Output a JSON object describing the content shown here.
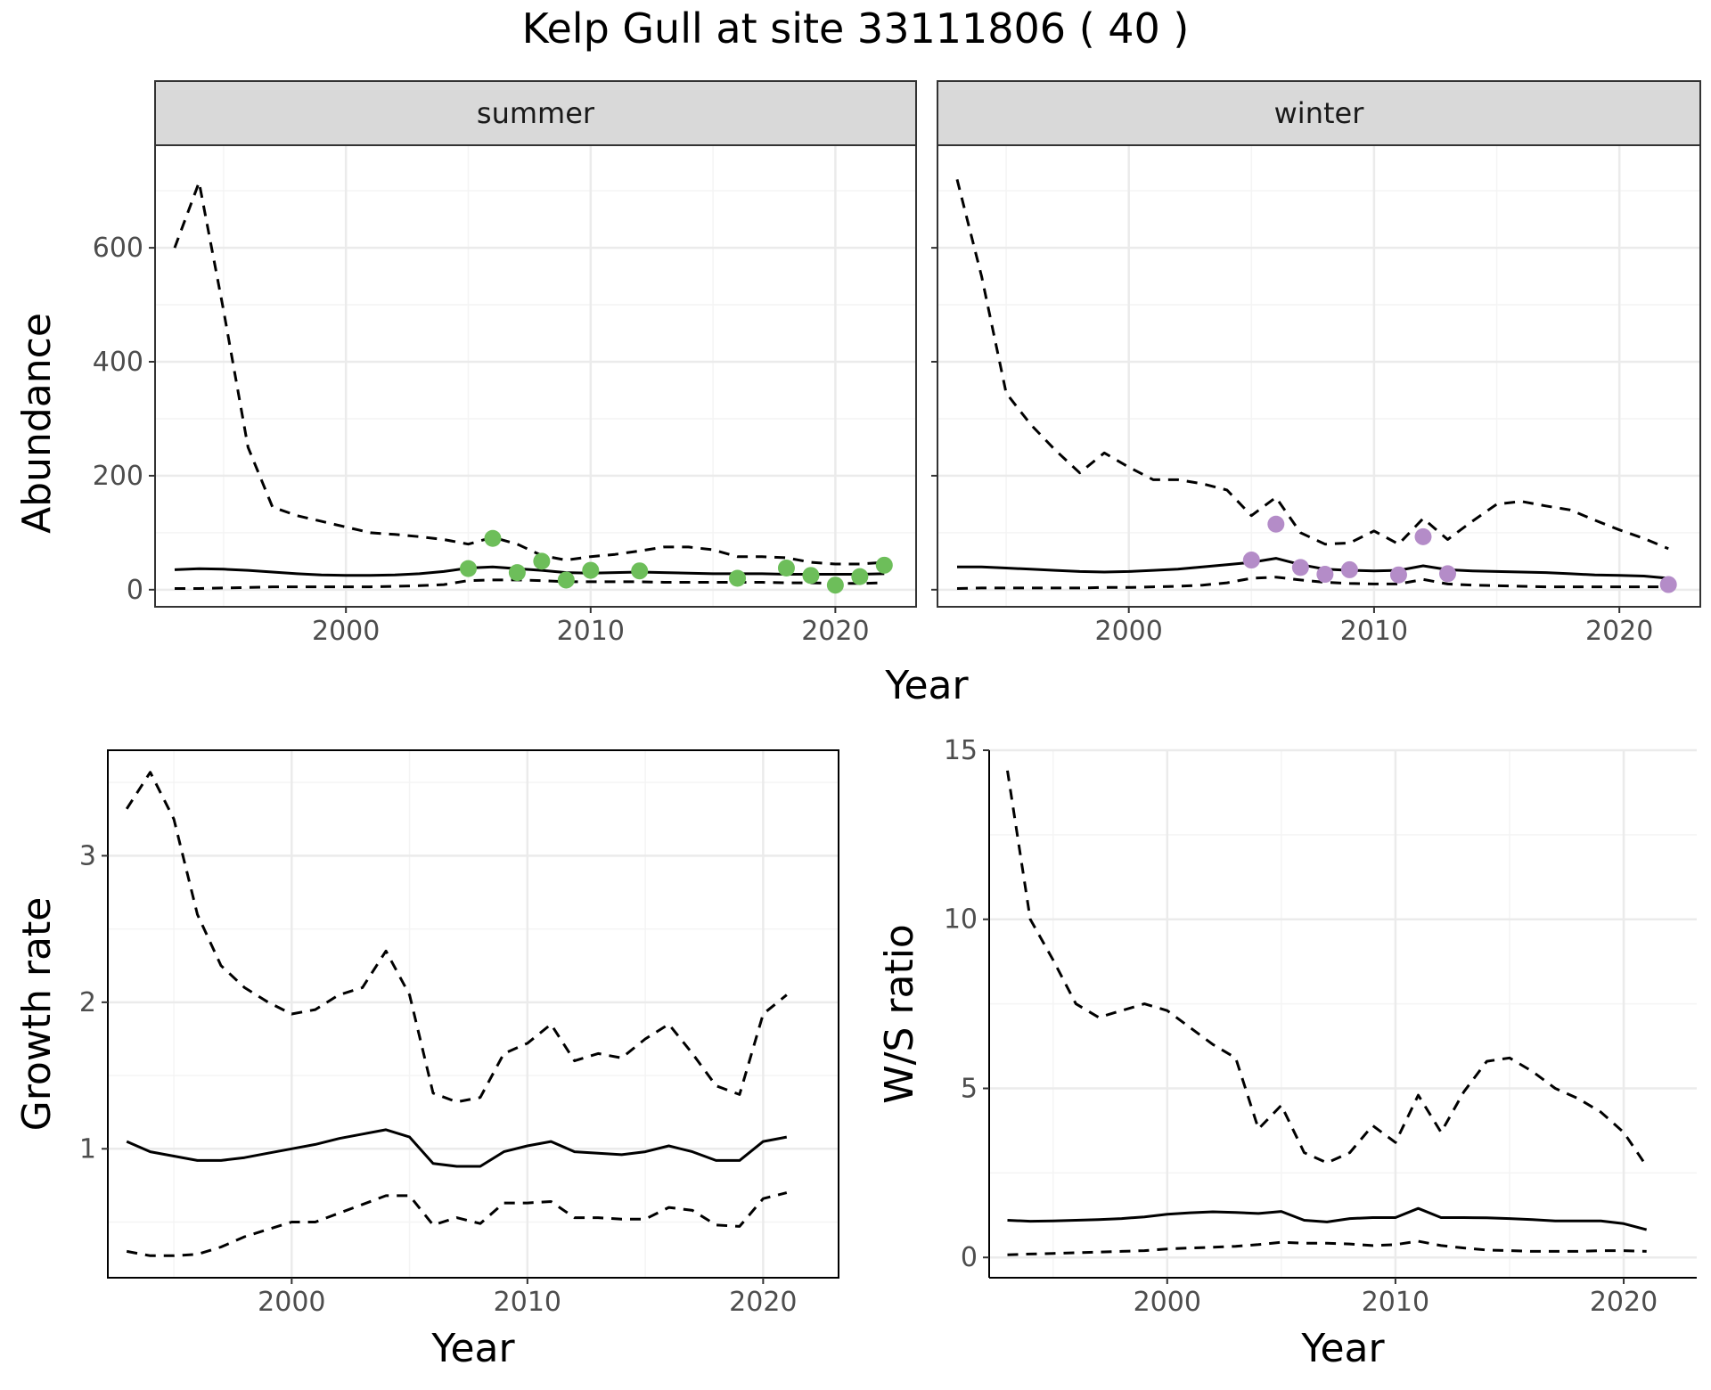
{
  "title": "Kelp Gull at site 33111806 ( 40 )",
  "colors": {
    "summer_points": "#6dbe5a",
    "winter_points": "#b48cc8",
    "line": "#000000",
    "grid_major": "#ebebeb",
    "grid_minor": "#f4f4f4",
    "strip_fill": "#d9d9d9",
    "panel_border": "#333333"
  },
  "top": {
    "xlabel": "Year",
    "ylabel": "Abundance",
    "panels": [
      {
        "strip": "summer"
      },
      {
        "strip": "winter"
      }
    ]
  },
  "chart_data": [
    {
      "type": "line",
      "panel": "summer",
      "xlabel": "Year",
      "ylabel": "Abundance",
      "xlim": [
        1992.2,
        2023.3
      ],
      "ylim": [
        -30,
        780
      ],
      "xticks": [
        2000,
        2010,
        2020
      ],
      "yticks": [
        0,
        200,
        400,
        600
      ],
      "grid": true,
      "series": [
        {
          "style": "solid",
          "x": [
            1993,
            1994,
            1995,
            1996,
            1997,
            1998,
            1999,
            2000,
            2001,
            2002,
            2003,
            2004,
            2005,
            2006,
            2007,
            2008,
            2009,
            2010,
            2011,
            2012,
            2013,
            2014,
            2015,
            2016,
            2017,
            2018,
            2019,
            2020,
            2021,
            2022
          ],
          "y": [
            35,
            37,
            36,
            34,
            31,
            28,
            26,
            25,
            25,
            26,
            28,
            32,
            38,
            40,
            37,
            34,
            30,
            29,
            30,
            31,
            30,
            29,
            28,
            28,
            28,
            27,
            27,
            27,
            27,
            28
          ]
        },
        {
          "style": "dashed",
          "x": [
            1993,
            1994,
            1995,
            1996,
            1997,
            1998,
            1999,
            2000,
            2001,
            2002,
            2003,
            2004,
            2005,
            2006,
            2007,
            2008,
            2009,
            2010,
            2011,
            2012,
            2013,
            2014,
            2015,
            2016,
            2017,
            2018,
            2019,
            2020,
            2021,
            2022
          ],
          "y": [
            600,
            715,
            490,
            250,
            145,
            130,
            120,
            110,
            100,
            97,
            93,
            88,
            80,
            92,
            80,
            60,
            52,
            58,
            62,
            68,
            75,
            75,
            70,
            58,
            58,
            56,
            48,
            45,
            45,
            48
          ]
        },
        {
          "style": "dashed",
          "x": [
            1993,
            1994,
            1995,
            1996,
            1997,
            1998,
            1999,
            2000,
            2001,
            2002,
            2003,
            2004,
            2005,
            2006,
            2007,
            2008,
            2009,
            2010,
            2011,
            2012,
            2013,
            2014,
            2015,
            2016,
            2017,
            2018,
            2019,
            2020,
            2021,
            2022
          ],
          "y": [
            2,
            2,
            3,
            4,
            5,
            5,
            5,
            5,
            5,
            6,
            7,
            9,
            16,
            17,
            17,
            16,
            14,
            14,
            14,
            14,
            13,
            13,
            13,
            13,
            13,
            12,
            12,
            11,
            11,
            12
          ]
        },
        {
          "style": "points",
          "x": [
            2005,
            2006,
            2007,
            2008,
            2009,
            2010,
            2012,
            2016,
            2018,
            2019,
            2020,
            2021,
            2022
          ],
          "y": [
            37,
            90,
            30,
            50,
            17,
            34,
            33,
            20,
            38,
            25,
            8,
            23,
            43
          ]
        }
      ]
    },
    {
      "type": "line",
      "panel": "winter",
      "xlabel": "Year",
      "ylabel": "Abundance",
      "xlim": [
        1992.2,
        2023.3
      ],
      "ylim": [
        -30,
        780
      ],
      "xticks": [
        2000,
        2010,
        2020
      ],
      "yticks": [
        0,
        200,
        400,
        600
      ],
      "grid": true,
      "series": [
        {
          "style": "solid",
          "x": [
            1993,
            1994,
            1995,
            1996,
            1997,
            1998,
            1999,
            2000,
            2001,
            2002,
            2003,
            2004,
            2005,
            2006,
            2007,
            2008,
            2009,
            2010,
            2011,
            2012,
            2013,
            2014,
            2015,
            2016,
            2017,
            2018,
            2019,
            2020,
            2021,
            2022
          ],
          "y": [
            40,
            40,
            38,
            36,
            34,
            32,
            31,
            32,
            34,
            36,
            40,
            44,
            48,
            55,
            44,
            36,
            34,
            33,
            34,
            42,
            35,
            33,
            32,
            31,
            30,
            28,
            26,
            25,
            24,
            20
          ]
        },
        {
          "style": "dashed",
          "x": [
            1993,
            1994,
            1995,
            1996,
            1997,
            1998,
            1999,
            2000,
            2001,
            2002,
            2003,
            2004,
            2005,
            2006,
            2007,
            2008,
            2009,
            2010,
            2011,
            2012,
            2013,
            2014,
            2015,
            2016,
            2017,
            2018,
            2019,
            2020,
            2021,
            2022
          ],
          "y": [
            720,
            550,
            345,
            290,
            245,
            205,
            240,
            215,
            193,
            193,
            186,
            175,
            130,
            162,
            100,
            80,
            82,
            103,
            80,
            125,
            88,
            120,
            150,
            155,
            147,
            140,
            122,
            105,
            90,
            72
          ]
        },
        {
          "style": "dashed",
          "x": [
            1993,
            1994,
            1995,
            1996,
            1997,
            1998,
            1999,
            2000,
            2001,
            2002,
            2003,
            2004,
            2005,
            2006,
            2007,
            2008,
            2009,
            2010,
            2011,
            2012,
            2013,
            2014,
            2015,
            2016,
            2017,
            2018,
            2019,
            2020,
            2021,
            2022
          ],
          "y": [
            2,
            3,
            3,
            3,
            3,
            3,
            4,
            4,
            5,
            6,
            8,
            12,
            20,
            22,
            17,
            13,
            11,
            10,
            10,
            18,
            10,
            8,
            7,
            6,
            5,
            5,
            5,
            5,
            5,
            5
          ]
        },
        {
          "style": "points",
          "x": [
            2005,
            2006,
            2007,
            2008,
            2009,
            2011,
            2012,
            2013,
            2022
          ],
          "y": [
            52,
            115,
            39,
            27,
            35,
            26,
            93,
            28,
            9
          ]
        }
      ]
    },
    {
      "type": "line",
      "panel": "growth",
      "xlabel": "Year",
      "ylabel": "Growth rate",
      "xlim": [
        1992.2,
        2023.2
      ],
      "ylim": [
        0.12,
        3.72
      ],
      "xticks": [
        2000,
        2010,
        2020
      ],
      "yticks": [
        1,
        2,
        3
      ],
      "grid": true,
      "series": [
        {
          "style": "solid",
          "x": [
            1993,
            1994,
            1995,
            1996,
            1997,
            1998,
            1999,
            2000,
            2001,
            2002,
            2003,
            2004,
            2005,
            2006,
            2007,
            2008,
            2009,
            2010,
            2011,
            2012,
            2013,
            2014,
            2015,
            2016,
            2017,
            2018,
            2019,
            2020,
            2021
          ],
          "y": [
            1.05,
            0.98,
            0.95,
            0.92,
            0.92,
            0.94,
            0.97,
            1.0,
            1.03,
            1.07,
            1.1,
            1.13,
            1.08,
            0.9,
            0.88,
            0.88,
            0.98,
            1.02,
            1.05,
            0.98,
            0.97,
            0.96,
            0.98,
            1.02,
            0.98,
            0.92,
            0.92,
            1.05,
            1.08
          ]
        },
        {
          "style": "dashed",
          "x": [
            1993,
            1994,
            1995,
            1996,
            1997,
            1998,
            1999,
            2000,
            2001,
            2002,
            2003,
            2004,
            2005,
            2006,
            2007,
            2008,
            2009,
            2010,
            2011,
            2012,
            2013,
            2014,
            2015,
            2016,
            2017,
            2018,
            2019,
            2020,
            2021
          ],
          "y": [
            3.32,
            3.57,
            3.25,
            2.6,
            2.25,
            2.1,
            2.0,
            1.92,
            1.95,
            2.05,
            2.1,
            2.35,
            2.05,
            1.38,
            1.32,
            1.35,
            1.65,
            1.72,
            1.85,
            1.6,
            1.65,
            1.62,
            1.75,
            1.85,
            1.65,
            1.43,
            1.37,
            1.92,
            2.05
          ]
        },
        {
          "style": "dashed",
          "x": [
            1993,
            1994,
            1995,
            1996,
            1997,
            1998,
            1999,
            2000,
            2001,
            2002,
            2003,
            2004,
            2005,
            2006,
            2007,
            2008,
            2009,
            2010,
            2011,
            2012,
            2013,
            2014,
            2015,
            2016,
            2017,
            2018,
            2019,
            2020,
            2021
          ],
          "y": [
            0.3,
            0.27,
            0.27,
            0.28,
            0.33,
            0.4,
            0.45,
            0.5,
            0.5,
            0.56,
            0.62,
            0.68,
            0.68,
            0.48,
            0.53,
            0.49,
            0.63,
            0.63,
            0.64,
            0.53,
            0.53,
            0.52,
            0.52,
            0.6,
            0.58,
            0.48,
            0.47,
            0.66,
            0.7
          ]
        }
      ]
    },
    {
      "type": "line",
      "panel": "ratio",
      "xlabel": "Year",
      "ylabel": "W/S ratio",
      "xlim": [
        1992.2,
        2023.2
      ],
      "ylim": [
        -0.6,
        15.0
      ],
      "xticks": [
        2000,
        2010,
        2020
      ],
      "yticks": [
        0,
        5,
        10,
        15
      ],
      "grid": true,
      "series": [
        {
          "style": "solid",
          "x": [
            1993,
            1994,
            1995,
            1996,
            1997,
            1998,
            1999,
            2000,
            2001,
            2002,
            2003,
            2004,
            2005,
            2006,
            2007,
            2008,
            2009,
            2010,
            2011,
            2012,
            2013,
            2014,
            2015,
            2016,
            2017,
            2018,
            2019,
            2020,
            2021
          ],
          "y": [
            1.1,
            1.07,
            1.08,
            1.1,
            1.12,
            1.15,
            1.2,
            1.28,
            1.32,
            1.35,
            1.33,
            1.3,
            1.36,
            1.1,
            1.05,
            1.15,
            1.18,
            1.18,
            1.45,
            1.18,
            1.18,
            1.17,
            1.15,
            1.12,
            1.08,
            1.08,
            1.08,
            1.0,
            0.82
          ]
        },
        {
          "style": "dashed",
          "x": [
            1993,
            1994,
            1995,
            1996,
            1997,
            1998,
            1999,
            2000,
            2001,
            2002,
            2003,
            2004,
            2005,
            2006,
            2007,
            2008,
            2009,
            2010,
            2011,
            2012,
            2013,
            2014,
            2015,
            2016,
            2017,
            2018,
            2019,
            2020,
            2021
          ],
          "y": [
            14.4,
            10.0,
            8.8,
            7.5,
            7.1,
            7.3,
            7.5,
            7.3,
            6.8,
            6.3,
            5.9,
            3.8,
            4.5,
            3.1,
            2.8,
            3.1,
            3.9,
            3.4,
            4.8,
            3.7,
            4.9,
            5.8,
            5.9,
            5.5,
            5.0,
            4.7,
            4.3,
            3.7,
            2.7
          ]
        },
        {
          "style": "dashed",
          "x": [
            1993,
            1994,
            1995,
            1996,
            1997,
            1998,
            1999,
            2000,
            2001,
            2002,
            2003,
            2004,
            2005,
            2006,
            2007,
            2008,
            2009,
            2010,
            2011,
            2012,
            2013,
            2014,
            2015,
            2016,
            2017,
            2018,
            2019,
            2020,
            2021
          ],
          "y": [
            0.08,
            0.1,
            0.12,
            0.14,
            0.16,
            0.18,
            0.2,
            0.25,
            0.28,
            0.3,
            0.33,
            0.38,
            0.45,
            0.42,
            0.42,
            0.4,
            0.35,
            0.38,
            0.48,
            0.35,
            0.28,
            0.22,
            0.2,
            0.18,
            0.18,
            0.18,
            0.2,
            0.2,
            0.18
          ]
        }
      ]
    }
  ]
}
